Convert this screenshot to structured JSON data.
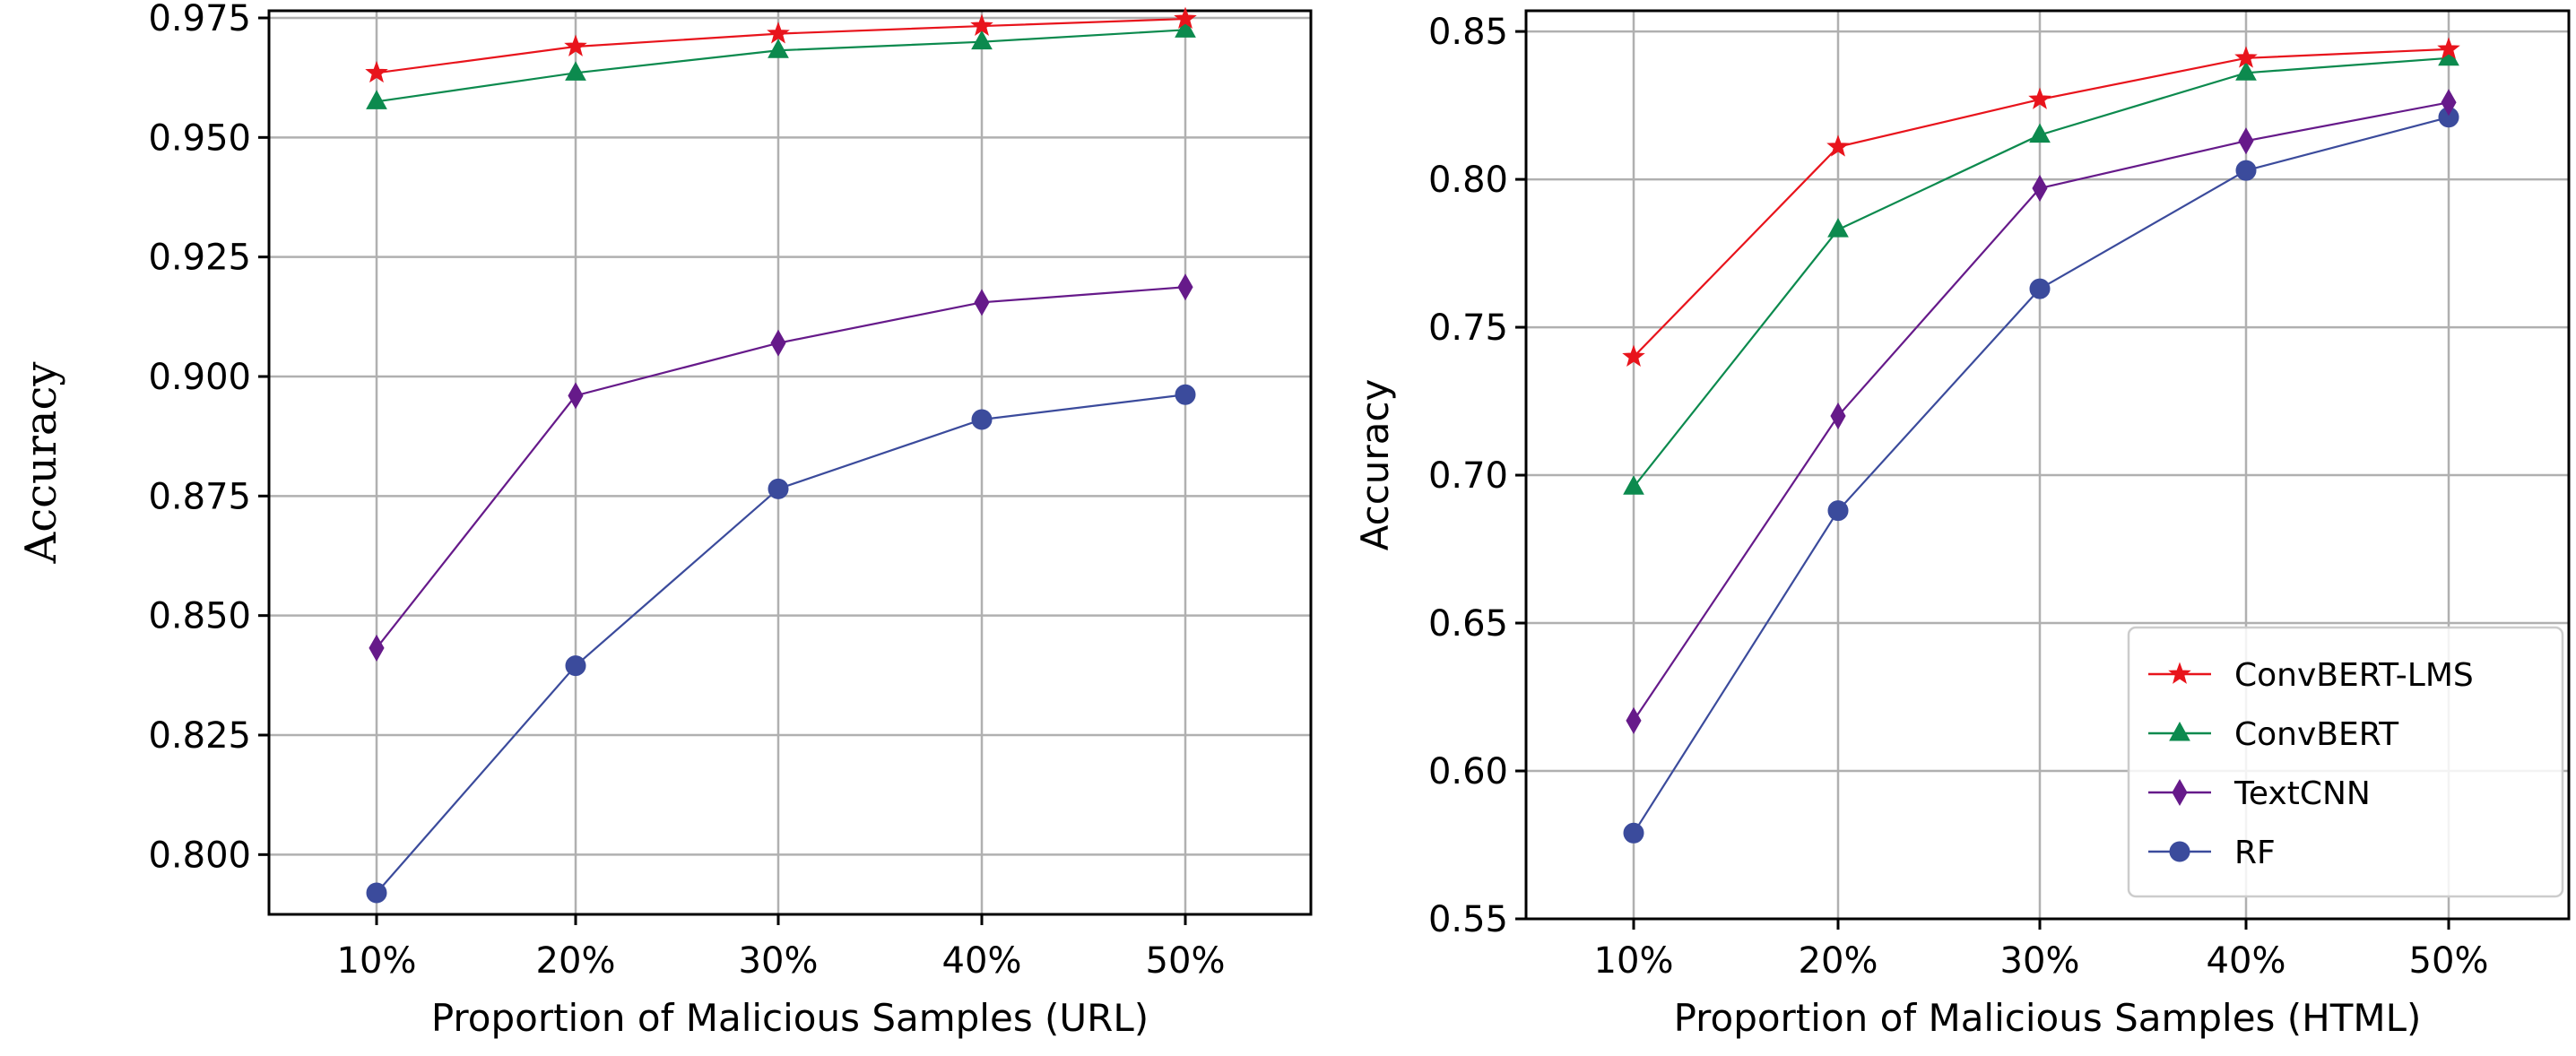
{
  "chart_data": [
    {
      "type": "line",
      "xlabel": "Proportion of Malicious Samples (URL)",
      "ylabel": "Accuracy",
      "categories": [
        "10%",
        "20%",
        "30%",
        "40%",
        "50%"
      ],
      "ylim": [
        0.7875,
        0.9765
      ],
      "yticks": [
        "0.975",
        "0.950",
        "0.925",
        "0.900",
        "0.875",
        "0.850",
        "0.825",
        "0.800"
      ],
      "ytick_values": [
        0.975,
        0.95,
        0.925,
        0.9,
        0.875,
        0.85,
        0.825,
        0.8
      ],
      "grid": true,
      "series": [
        {
          "name": "ConvBERT-LMS",
          "color": "#e8141c",
          "marker": "star",
          "values": [
            0.9635,
            0.969,
            0.9717,
            0.9733,
            0.9748
          ]
        },
        {
          "name": "ConvBERT",
          "color": "#0c8a4e",
          "marker": "triangle",
          "values": [
            0.9575,
            0.9635,
            0.9682,
            0.97,
            0.9725
          ]
        },
        {
          "name": "TextCNN",
          "color": "#661a8a",
          "marker": "diamond",
          "values": [
            0.8432,
            0.896,
            0.907,
            0.9155,
            0.9187
          ]
        },
        {
          "name": "RF",
          "color": "#3b4b9c",
          "marker": "circle",
          "values": [
            0.792,
            0.8395,
            0.8765,
            0.891,
            0.8962
          ]
        }
      ]
    },
    {
      "type": "line",
      "xlabel": "Proportion of Malicious Samples (HTML)",
      "ylabel": "Accuracy",
      "categories": [
        "10%",
        "20%",
        "30%",
        "40%",
        "50%"
      ],
      "ylim": [
        0.55,
        0.857
      ],
      "yticks": [
        "0.85",
        "0.80",
        "0.75",
        "0.70",
        "0.65",
        "0.60",
        "0.55"
      ],
      "ytick_values": [
        0.85,
        0.8,
        0.75,
        0.7,
        0.65,
        0.6,
        0.55
      ],
      "grid": true,
      "legend": "lower-right",
      "series": [
        {
          "name": "ConvBERT-LMS",
          "color": "#e8141c",
          "marker": "star",
          "values": [
            0.74,
            0.811,
            0.827,
            0.841,
            0.844
          ]
        },
        {
          "name": "ConvBERT",
          "color": "#0c8a4e",
          "marker": "triangle",
          "values": [
            0.696,
            0.783,
            0.815,
            0.836,
            0.841
          ]
        },
        {
          "name": "TextCNN",
          "color": "#661a8a",
          "marker": "diamond",
          "values": [
            0.617,
            0.72,
            0.797,
            0.813,
            0.826
          ]
        },
        {
          "name": "RF",
          "color": "#3b4b9c",
          "marker": "circle",
          "values": [
            0.579,
            0.688,
            0.763,
            0.803,
            0.821
          ]
        }
      ]
    }
  ]
}
